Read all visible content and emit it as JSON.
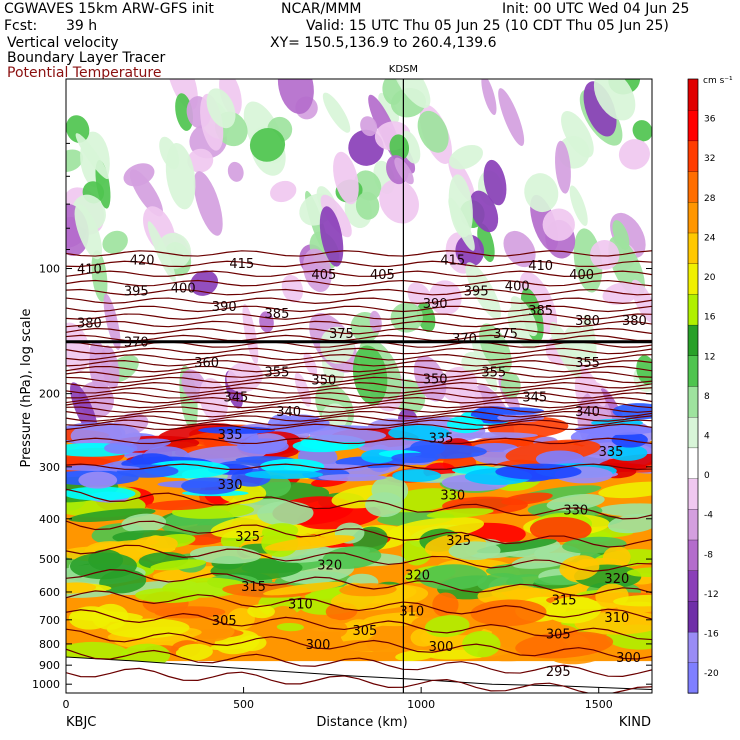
{
  "header": {
    "model": "CGWAVES 15km ARW-GFS init",
    "org": "NCAR/MMM",
    "init": "Init: 00 UTC Wed 04 Jun 25",
    "fcst_label": "Fcst:",
    "fcst_value": "39 h",
    "valid": "Valid: 15 UTC Thu 05 Jun 25 (10 CDT Thu 05 Jun 25)",
    "field1": "Vertical velocity",
    "field2": "Boundary Layer Tracer",
    "field3": "Potential Temperature",
    "xy": "XY= 150.5,136.9 to 260.4,139.6"
  },
  "colors": {
    "theta_line": "#6b0000",
    "tropopause_line": "#000000",
    "palette": [
      "#7f7fff",
      "#9a8cf5",
      "#6f2fa8",
      "#8a3fb8",
      "#b46ccc",
      "#d49fdf",
      "#f0c8f0",
      "#ffffff",
      "#d8f5d8",
      "#9ee39e",
      "#4fc44f",
      "#28a028",
      "#b0f000",
      "#f0f000",
      "#ffc800",
      "#ff9600",
      "#ff6e00",
      "#ff3c00",
      "#ff0000",
      "#e00000"
    ]
  },
  "chart_data": {
    "type": "heatmap",
    "title": "",
    "xlabel": "Distance (km)",
    "ylabel": "Pressure (hPa), log scale",
    "marker_label": "KDSM",
    "marker_x": 950,
    "left_station": "KBJC",
    "right_station": "KIND",
    "xlim": [
      0,
      1650
    ],
    "ylim": [
      1050,
      35
    ],
    "x_ticks": [
      {
        "v": 0,
        "label": "0"
      },
      {
        "v": 500,
        "label": "500"
      },
      {
        "v": 1000,
        "label": "1000"
      },
      {
        "v": 1500,
        "label": "1500"
      }
    ],
    "y_ticks": [
      {
        "v": 100,
        "label": "100"
      },
      {
        "v": 200,
        "label": "200"
      },
      {
        "v": 300,
        "label": "300"
      },
      {
        "v": 400,
        "label": "400"
      },
      {
        "v": 500,
        "label": "500"
      },
      {
        "v": 600,
        "label": "600"
      },
      {
        "v": 700,
        "label": "700"
      },
      {
        "v": 800,
        "label": "800"
      },
      {
        "v": 900,
        "label": "900"
      },
      {
        "v": 1000,
        "label": "1000"
      }
    ],
    "colorbar": {
      "unit": "cm s⁻¹",
      "labels": [
        {
          "v": 36,
          "label": "36"
        },
        {
          "v": 32,
          "label": "32"
        },
        {
          "v": 28,
          "label": "28"
        },
        {
          "v": 24,
          "label": "24"
        },
        {
          "v": 20,
          "label": "20"
        },
        {
          "v": 16,
          "label": "16"
        },
        {
          "v": 12,
          "label": "12"
        },
        {
          "v": 8,
          "label": "8"
        },
        {
          "v": 4,
          "label": "4"
        },
        {
          "v": 0,
          "label": "0"
        },
        {
          "v": -4,
          "label": "-4"
        },
        {
          "v": -8,
          "label": "-8"
        },
        {
          "v": -12,
          "label": "-12"
        },
        {
          "v": -16,
          "label": "-16"
        },
        {
          "v": -20,
          "label": "-20"
        }
      ]
    },
    "theta_labels": [
      {
        "x": 0.04,
        "p": 100,
        "label": "410"
      },
      {
        "x": 0.13,
        "p": 95,
        "label": "420"
      },
      {
        "x": 0.3,
        "p": 97,
        "label": "415"
      },
      {
        "x": 0.44,
        "p": 103,
        "label": "405"
      },
      {
        "x": 0.54,
        "p": 103,
        "label": "405"
      },
      {
        "x": 0.66,
        "p": 95,
        "label": "415"
      },
      {
        "x": 0.81,
        "p": 98,
        "label": "410"
      },
      {
        "x": 0.88,
        "p": 103,
        "label": "400"
      },
      {
        "x": 0.12,
        "p": 113,
        "label": "395"
      },
      {
        "x": 0.2,
        "p": 111,
        "label": "400"
      },
      {
        "x": 0.27,
        "p": 123,
        "label": "390"
      },
      {
        "x": 0.63,
        "p": 121,
        "label": "390"
      },
      {
        "x": 0.7,
        "p": 113,
        "label": "395"
      },
      {
        "x": 0.77,
        "p": 110,
        "label": "400"
      },
      {
        "x": 0.04,
        "p": 135,
        "label": "380"
      },
      {
        "x": 0.36,
        "p": 128,
        "label": "385"
      },
      {
        "x": 0.81,
        "p": 126,
        "label": "385"
      },
      {
        "x": 0.89,
        "p": 133,
        "label": "380"
      },
      {
        "x": 0.97,
        "p": 133,
        "label": "380"
      },
      {
        "x": 0.12,
        "p": 150,
        "label": "370"
      },
      {
        "x": 0.47,
        "p": 143,
        "label": "375"
      },
      {
        "x": 0.68,
        "p": 147,
        "label": "370"
      },
      {
        "x": 0.75,
        "p": 143,
        "label": "375"
      },
      {
        "x": 0.24,
        "p": 168,
        "label": "360"
      },
      {
        "x": 0.36,
        "p": 177,
        "label": "355"
      },
      {
        "x": 0.89,
        "p": 168,
        "label": "355"
      },
      {
        "x": 0.73,
        "p": 177,
        "label": "355"
      },
      {
        "x": 0.44,
        "p": 185,
        "label": "350"
      },
      {
        "x": 0.63,
        "p": 184,
        "label": "350"
      },
      {
        "x": 0.29,
        "p": 203,
        "label": "345"
      },
      {
        "x": 0.8,
        "p": 203,
        "label": "345"
      },
      {
        "x": 0.38,
        "p": 220,
        "label": "340"
      },
      {
        "x": 0.89,
        "p": 220,
        "label": "340"
      },
      {
        "x": 0.28,
        "p": 250,
        "label": "335"
      },
      {
        "x": 0.64,
        "p": 255,
        "label": "335"
      },
      {
        "x": 0.93,
        "p": 275,
        "label": "335"
      },
      {
        "x": 0.28,
        "p": 330,
        "label": "330"
      },
      {
        "x": 0.66,
        "p": 350,
        "label": "330"
      },
      {
        "x": 0.87,
        "p": 380,
        "label": "330"
      },
      {
        "x": 0.31,
        "p": 440,
        "label": "325"
      },
      {
        "x": 0.67,
        "p": 450,
        "label": "325"
      },
      {
        "x": 0.45,
        "p": 515,
        "label": "320"
      },
      {
        "x": 0.6,
        "p": 545,
        "label": "320"
      },
      {
        "x": 0.94,
        "p": 555,
        "label": "320"
      },
      {
        "x": 0.32,
        "p": 580,
        "label": "315"
      },
      {
        "x": 0.85,
        "p": 625,
        "label": "315"
      },
      {
        "x": 0.4,
        "p": 640,
        "label": "310"
      },
      {
        "x": 0.59,
        "p": 665,
        "label": "310"
      },
      {
        "x": 0.94,
        "p": 690,
        "label": "310"
      },
      {
        "x": 0.27,
        "p": 700,
        "label": "305"
      },
      {
        "x": 0.51,
        "p": 740,
        "label": "305"
      },
      {
        "x": 0.84,
        "p": 755,
        "label": "305"
      },
      {
        "x": 0.43,
        "p": 800,
        "label": "300"
      },
      {
        "x": 0.64,
        "p": 810,
        "label": "300"
      },
      {
        "x": 0.96,
        "p": 860,
        "label": "300"
      },
      {
        "x": 0.84,
        "p": 930,
        "label": "295"
      }
    ],
    "tropopause_p": 150
  }
}
